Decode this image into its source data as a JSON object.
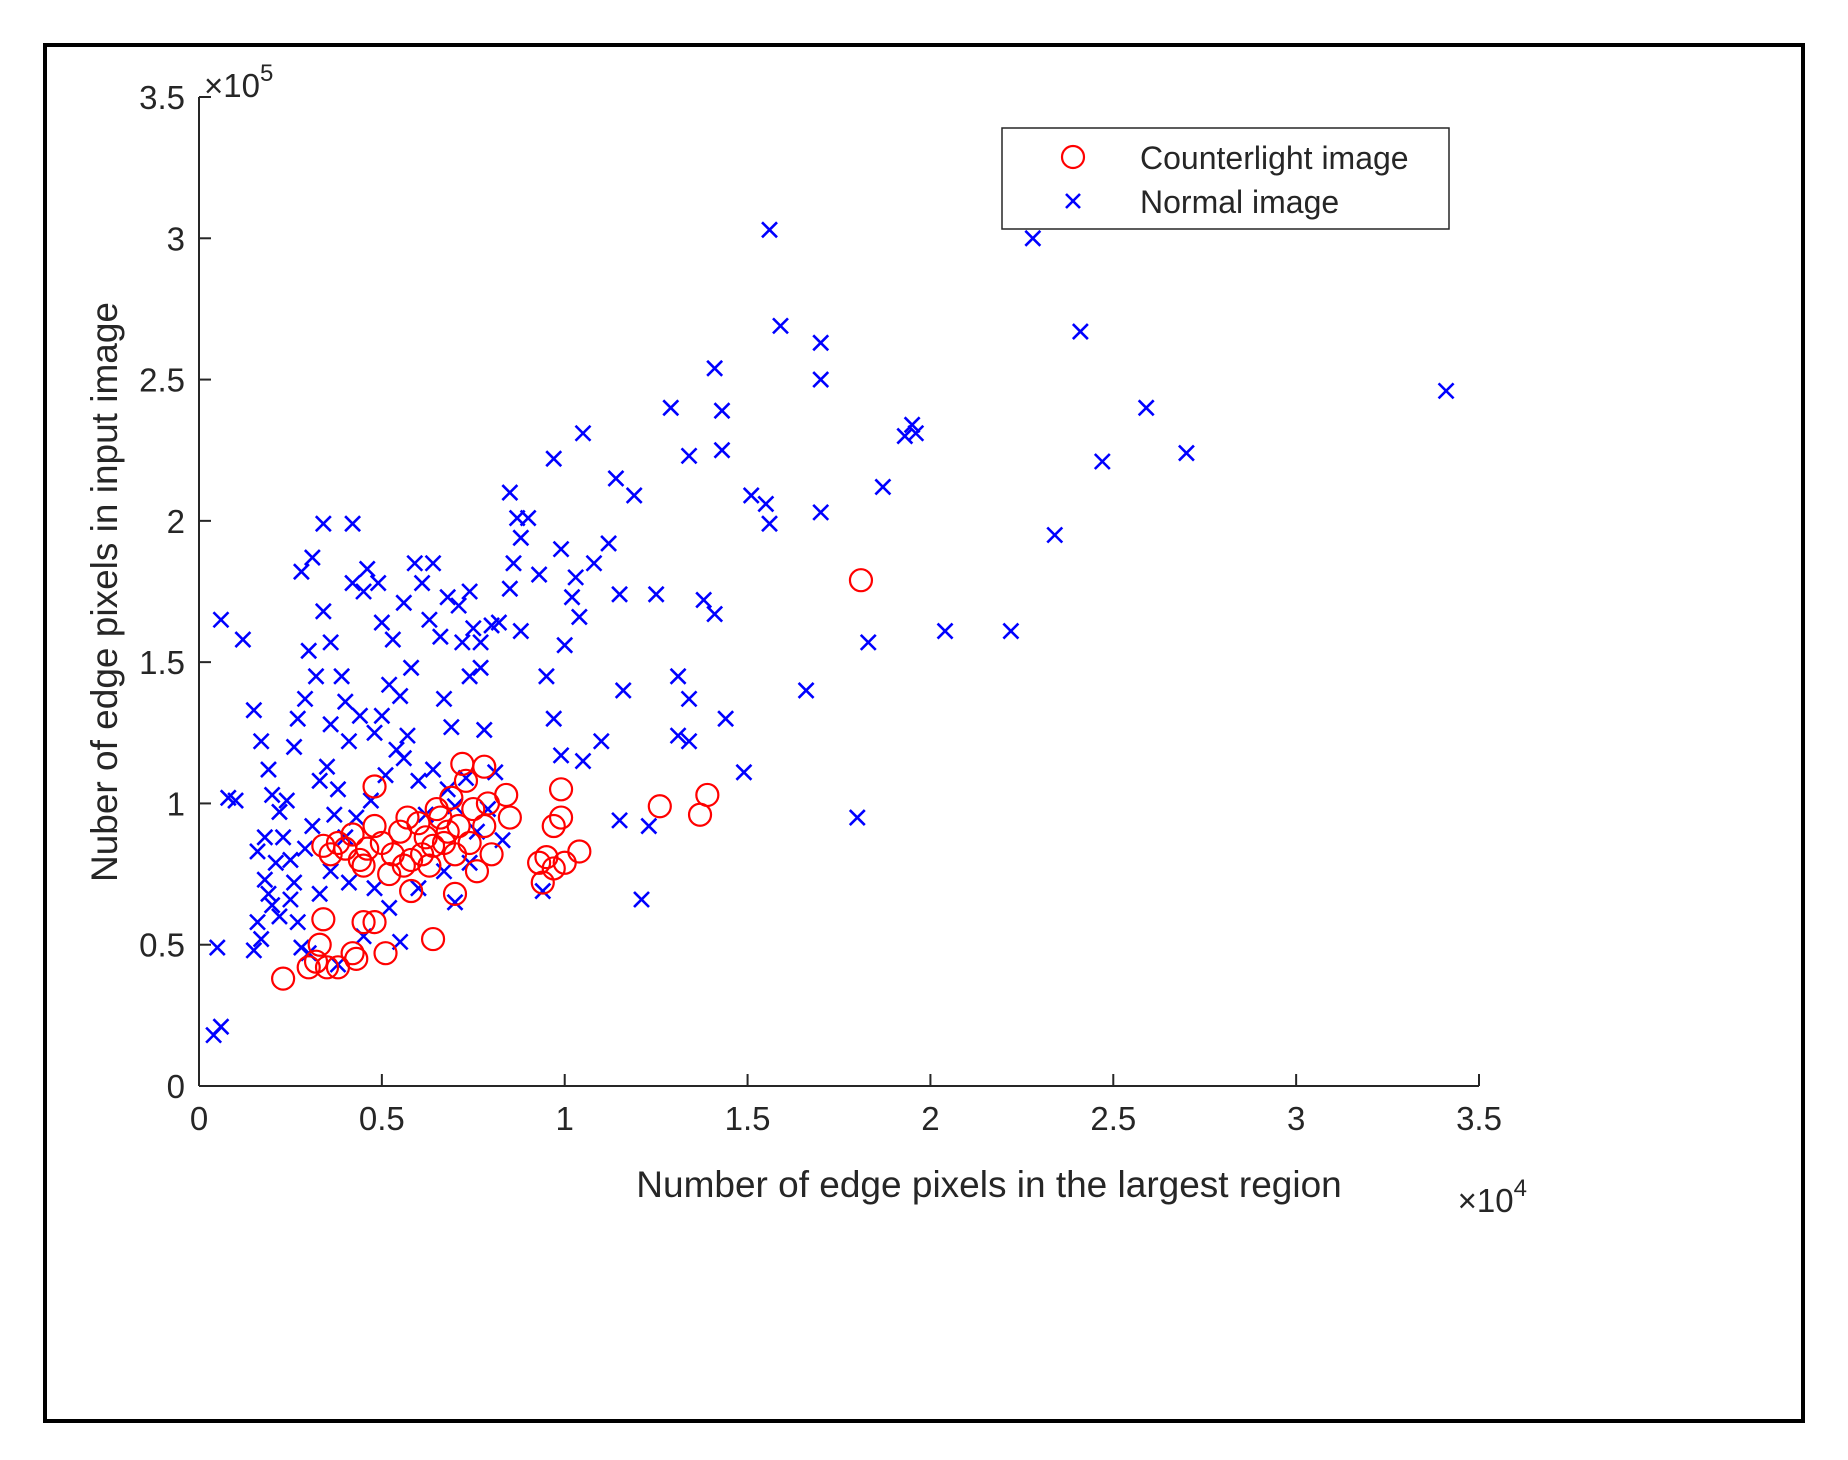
{
  "chart_data": {
    "type": "scatter",
    "title": "",
    "xlabel": "Number of edge pixels in the largest region",
    "ylabel": "Nuber of edge pixels in input image",
    "x_multiplier": "×10",
    "x_exponent": "4",
    "y_multiplier": "×10",
    "y_exponent": "5",
    "xlim": [
      0,
      3.5
    ],
    "ylim": [
      0,
      3.5
    ],
    "xticks": [
      "0",
      "0.5",
      "1",
      "1.5",
      "2",
      "2.5",
      "3",
      "3.5"
    ],
    "yticks": [
      "0",
      "0.5",
      "1",
      "1.5",
      "2",
      "2.5",
      "3",
      "3.5"
    ],
    "grid": false,
    "legend_position": "top-right",
    "series": [
      {
        "name": "Counterlight image",
        "marker": "circle",
        "color": "#ff0000",
        "points": [
          [
            0.23,
            0.38
          ],
          [
            0.3,
            0.42
          ],
          [
            0.32,
            0.44
          ],
          [
            0.33,
            0.5
          ],
          [
            0.34,
            0.59
          ],
          [
            0.35,
            0.42
          ],
          [
            0.38,
            0.42
          ],
          [
            0.42,
            0.47
          ],
          [
            0.43,
            0.45
          ],
          [
            0.45,
            0.58
          ],
          [
            0.48,
            0.58
          ],
          [
            0.51,
            0.47
          ],
          [
            0.64,
            0.52
          ],
          [
            0.58,
            0.69
          ],
          [
            0.7,
            0.68
          ],
          [
            0.72,
            1.14
          ],
          [
            0.78,
            1.13
          ],
          [
            0.73,
            1.08
          ],
          [
            0.48,
            1.06
          ],
          [
            0.99,
            1.05
          ],
          [
            1.39,
            1.03
          ],
          [
            1.26,
            0.99
          ],
          [
            1.37,
            0.96
          ],
          [
            0.97,
            0.92
          ],
          [
            0.99,
            0.95
          ],
          [
            1.04,
            0.83
          ],
          [
            0.93,
            0.79
          ],
          [
            0.95,
            0.81
          ],
          [
            0.97,
            0.77
          ],
          [
            0.94,
            0.72
          ],
          [
            1.0,
            0.79
          ],
          [
            0.84,
            1.03
          ],
          [
            0.85,
            0.95
          ],
          [
            0.78,
            0.92
          ],
          [
            0.8,
            0.82
          ],
          [
            0.76,
            0.76
          ],
          [
            0.7,
            0.82
          ],
          [
            0.74,
            0.86
          ],
          [
            0.68,
            0.9
          ],
          [
            0.66,
            0.95
          ],
          [
            0.64,
            0.85
          ],
          [
            0.62,
            0.88
          ],
          [
            0.6,
            0.93
          ],
          [
            0.58,
            0.8
          ],
          [
            0.55,
            0.9
          ],
          [
            0.53,
            0.82
          ],
          [
            0.5,
            0.86
          ],
          [
            0.48,
            0.92
          ],
          [
            0.46,
            0.84
          ],
          [
            0.44,
            0.8
          ],
          [
            0.42,
            0.89
          ],
          [
            0.4,
            0.84
          ],
          [
            0.38,
            0.86
          ],
          [
            0.36,
            0.82
          ],
          [
            0.34,
            0.85
          ],
          [
            0.52,
            0.75
          ],
          [
            0.56,
            0.78
          ],
          [
            0.61,
            0.82
          ],
          [
            0.67,
            0.86
          ],
          [
            0.71,
            0.92
          ],
          [
            0.75,
            0.98
          ],
          [
            0.79,
            1.0
          ],
          [
            0.69,
            1.02
          ],
          [
            0.65,
            0.98
          ],
          [
            0.57,
            0.95
          ],
          [
            0.63,
            0.78
          ],
          [
            0.45,
            0.78
          ],
          [
            1.81,
            1.79
          ]
        ]
      },
      {
        "name": "Normal image",
        "marker": "x",
        "color": "#0000ff",
        "points": [
          [
            0.04,
            0.18
          ],
          [
            0.06,
            0.21
          ],
          [
            0.05,
            0.49
          ],
          [
            0.06,
            1.65
          ],
          [
            0.12,
            1.58
          ],
          [
            0.08,
            1.02
          ],
          [
            0.1,
            1.01
          ],
          [
            0.15,
            1.33
          ],
          [
            0.17,
            1.22
          ],
          [
            0.19,
            1.12
          ],
          [
            0.2,
            1.03
          ],
          [
            0.22,
            0.97
          ],
          [
            0.18,
            0.88
          ],
          [
            0.16,
            0.83
          ],
          [
            0.18,
            0.73
          ],
          [
            0.2,
            0.64
          ],
          [
            0.16,
            0.58
          ],
          [
            0.17,
            0.52
          ],
          [
            0.15,
            0.48
          ],
          [
            0.22,
            0.6
          ],
          [
            0.25,
            0.8
          ],
          [
            0.27,
            1.3
          ],
          [
            0.28,
            1.82
          ],
          [
            0.31,
            1.87
          ],
          [
            0.34,
            1.99
          ],
          [
            0.34,
            1.68
          ],
          [
            0.3,
            1.54
          ],
          [
            0.32,
            1.45
          ],
          [
            0.36,
            1.57
          ],
          [
            0.39,
            1.45
          ],
          [
            0.41,
            1.22
          ],
          [
            0.38,
            1.05
          ],
          [
            0.42,
            1.99
          ],
          [
            0.42,
            1.78
          ],
          [
            0.45,
            1.75
          ],
          [
            0.46,
            1.83
          ],
          [
            0.49,
            1.78
          ],
          [
            0.5,
            1.64
          ],
          [
            0.53,
            1.58
          ],
          [
            0.52,
            1.42
          ],
          [
            0.5,
            1.31
          ],
          [
            0.55,
            1.38
          ],
          [
            0.56,
            1.16
          ],
          [
            0.58,
            1.48
          ],
          [
            0.59,
            1.85
          ],
          [
            0.61,
            1.78
          ],
          [
            0.63,
            1.65
          ],
          [
            0.66,
            1.59
          ],
          [
            0.67,
            1.37
          ],
          [
            0.69,
            1.27
          ],
          [
            0.71,
            1.7
          ],
          [
            0.72,
            1.57
          ],
          [
            0.74,
            1.75
          ],
          [
            0.75,
            1.62
          ],
          [
            0.77,
            1.57
          ],
          [
            0.77,
            1.48
          ],
          [
            0.78,
            1.26
          ],
          [
            0.8,
            1.63
          ],
          [
            0.82,
            1.64
          ],
          [
            0.85,
            1.76
          ],
          [
            0.86,
            1.85
          ],
          [
            0.85,
            2.1
          ],
          [
            0.87,
            2.01
          ],
          [
            0.88,
            1.94
          ],
          [
            0.9,
            2.01
          ],
          [
            0.93,
            1.81
          ],
          [
            0.97,
            2.22
          ],
          [
            0.97,
            1.3
          ],
          [
            0.99,
            1.9
          ],
          [
            1.0,
            1.56
          ],
          [
            1.02,
            1.73
          ],
          [
            1.03,
            1.8
          ],
          [
            1.04,
            1.66
          ],
          [
            1.05,
            2.31
          ],
          [
            1.08,
            1.85
          ],
          [
            1.12,
            1.92
          ],
          [
            1.14,
            2.15
          ],
          [
            1.15,
            1.74
          ],
          [
            1.16,
            1.4
          ],
          [
            1.19,
            2.09
          ],
          [
            1.25,
            1.74
          ],
          [
            1.29,
            2.4
          ],
          [
            1.31,
            1.45
          ],
          [
            1.34,
            2.23
          ],
          [
            1.34,
            1.37
          ],
          [
            1.38,
            1.72
          ],
          [
            1.41,
            2.54
          ],
          [
            1.41,
            1.67
          ],
          [
            1.43,
            2.39
          ],
          [
            1.43,
            2.25
          ],
          [
            1.44,
            1.3
          ],
          [
            1.49,
            1.11
          ],
          [
            1.51,
            2.09
          ],
          [
            1.55,
            2.06
          ],
          [
            1.56,
            1.99
          ],
          [
            1.56,
            3.03
          ],
          [
            1.59,
            2.69
          ],
          [
            1.66,
            1.4
          ],
          [
            1.7,
            2.63
          ],
          [
            1.7,
            2.5
          ],
          [
            1.7,
            2.03
          ],
          [
            1.83,
            1.57
          ],
          [
            1.87,
            2.12
          ],
          [
            1.93,
            2.3
          ],
          [
            1.95,
            2.34
          ],
          [
            1.96,
            2.31
          ],
          [
            2.04,
            1.61
          ],
          [
            2.22,
            1.61
          ],
          [
            2.28,
            3.0
          ],
          [
            2.34,
            1.95
          ],
          [
            2.41,
            2.67
          ],
          [
            2.47,
            2.21
          ],
          [
            2.59,
            2.4
          ],
          [
            2.7,
            2.24
          ],
          [
            3.41,
            2.46
          ],
          [
            1.8,
            0.95
          ],
          [
            1.21,
            0.66
          ],
          [
            1.23,
            0.92
          ],
          [
            1.31,
            1.24
          ],
          [
            1.34,
            1.22
          ],
          [
            1.15,
            0.94
          ],
          [
            1.1,
            1.22
          ],
          [
            1.05,
            1.15
          ],
          [
            0.99,
            1.17
          ],
          [
            0.94,
            0.69
          ],
          [
            0.7,
            0.65
          ],
          [
            0.55,
            0.51
          ],
          [
            0.45,
            0.53
          ],
          [
            0.38,
            0.43
          ],
          [
            0.3,
            0.47
          ],
          [
            0.28,
            0.49
          ],
          [
            0.25,
            0.66
          ],
          [
            0.26,
            0.72
          ],
          [
            0.29,
            0.84
          ],
          [
            0.31,
            0.92
          ],
          [
            0.33,
            1.08
          ],
          [
            0.35,
            1.13
          ],
          [
            0.37,
            0.96
          ],
          [
            0.4,
            0.88
          ],
          [
            0.43,
            0.95
          ],
          [
            0.47,
            1.01
          ],
          [
            0.51,
            1.1
          ],
          [
            0.54,
            1.19
          ],
          [
            0.57,
            1.24
          ],
          [
            0.6,
            1.08
          ],
          [
            0.62,
            0.96
          ],
          [
            0.64,
            1.12
          ],
          [
            0.68,
            1.05
          ],
          [
            0.7,
            0.99
          ],
          [
            0.73,
            1.09
          ],
          [
            0.76,
            0.9
          ],
          [
            0.79,
            0.98
          ],
          [
            0.81,
            1.11
          ],
          [
            0.83,
            0.87
          ],
          [
            0.24,
            1.01
          ],
          [
            0.23,
            0.88
          ],
          [
            0.21,
            0.79
          ],
          [
            0.19,
            0.68
          ],
          [
            0.27,
            0.58
          ],
          [
            0.33,
            0.68
          ],
          [
            0.36,
            0.76
          ],
          [
            0.41,
            0.72
          ],
          [
            0.48,
            0.7
          ],
          [
            0.52,
            0.63
          ],
          [
            0.6,
            0.7
          ],
          [
            0.67,
            0.76
          ],
          [
            0.74,
            0.79
          ],
          [
            0.44,
            1.31
          ],
          [
            0.48,
            1.25
          ],
          [
            0.4,
            1.36
          ],
          [
            0.36,
            1.28
          ],
          [
            0.29,
            1.37
          ],
          [
            0.26,
            1.2
          ],
          [
            0.56,
            1.71
          ],
          [
            0.64,
            1.85
          ],
          [
            0.68,
            1.73
          ],
          [
            0.74,
            1.45
          ],
          [
            0.88,
            1.61
          ],
          [
            0.95,
            1.45
          ]
        ]
      }
    ]
  }
}
